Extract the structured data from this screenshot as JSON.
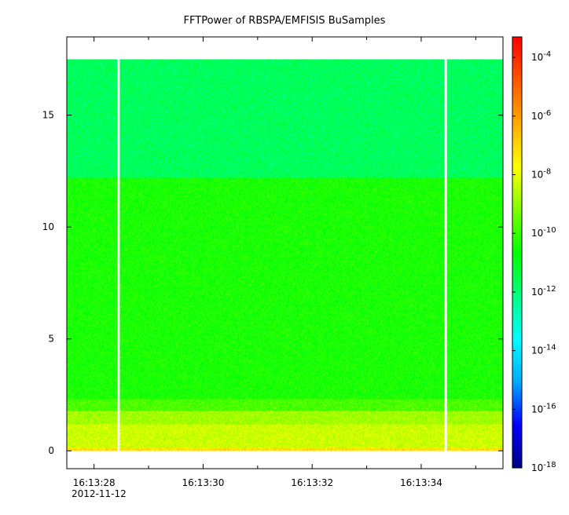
{
  "chart_data": {
    "type": "heatmap",
    "title": "FFTPower of RBSPA/EMFISIS  BuSamples",
    "xlabel": "",
    "ylabel": "",
    "x_ticks": [
      {
        "label": "16:13:28",
        "t": 28
      },
      {
        "label": "16:13:30",
        "t": 30
      },
      {
        "label": "16:13:32",
        "t": 32
      },
      {
        "label": "16:13:34",
        "t": 34
      }
    ],
    "x_minor_ticks": [
      29,
      31,
      33,
      35
    ],
    "x_date_label": "2012-11-12",
    "xlim": [
      27.5,
      35.5
    ],
    "ylim": [
      -0.8,
      18.5
    ],
    "y_ticks": [
      0,
      5,
      10,
      15
    ],
    "data_extent": {
      "t_start": 27.5,
      "t_end": 35.5,
      "freq_min": 0,
      "freq_max": 17.5
    },
    "gaps_t": [
      28.45,
      34.45
    ],
    "colorbar": {
      "scale": "log",
      "range": [
        -18,
        -3.3
      ],
      "tick_exponents": [
        -4,
        -6,
        -8,
        -10,
        -12,
        -14,
        -16,
        -18
      ],
      "tick_labels": [
        "10-4",
        "10-6",
        "10-8",
        "10-10",
        "10-12",
        "10-14",
        "10-16",
        "10-18"
      ],
      "stops": [
        "#000080",
        "#0000ff",
        "#00aaff",
        "#00ffff",
        "#00ff80",
        "#00ff00",
        "#80ff00",
        "#ffff00",
        "#ffaa00",
        "#ff5500",
        "#ff0000"
      ]
    },
    "spectrum_bands": [
      {
        "freq_from": 0,
        "freq_to": 0.15,
        "log10_power": -7.2
      },
      {
        "freq_from": 0.15,
        "freq_to": 1.2,
        "log10_power": -8.3
      },
      {
        "freq_from": 1.2,
        "freq_to": 1.8,
        "log10_power": -8.8
      },
      {
        "freq_from": 1.8,
        "freq_to": 2.3,
        "log10_power": -9.8
      },
      {
        "freq_from": 2.3,
        "freq_to": 12.2,
        "log10_power": -10.4
      },
      {
        "freq_from": 12.2,
        "freq_to": 17.5,
        "log10_power": -11.7
      }
    ],
    "grid": false,
    "legend": "colorbar-right"
  }
}
